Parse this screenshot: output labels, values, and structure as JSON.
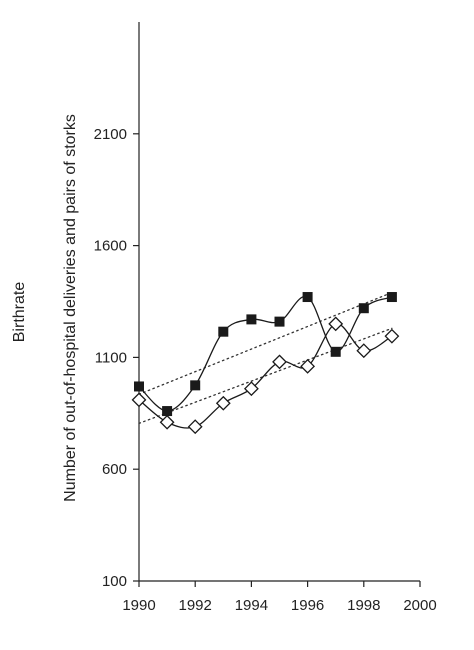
{
  "chart_data": {
    "type": "line",
    "title": "",
    "ylabel_outer": "Birthrate",
    "ylabel_inner": "Number of out-of-hospital deliveries and pairs of storks",
    "xlabel": "",
    "xlim": [
      1990,
      2000
    ],
    "ylim": [
      100,
      2600
    ],
    "x_ticks": [
      "1990",
      "1992",
      "1994",
      "1996",
      "1998",
      "2000"
    ],
    "y_ticks": [
      "100",
      "600",
      "1100",
      "1600",
      "2100"
    ],
    "x_tick_values": [
      1990,
      1992,
      1994,
      1996,
      1998,
      2000
    ],
    "y_tick_values": [
      100,
      600,
      1100,
      1600,
      2100
    ],
    "x": [
      1990,
      1991,
      1992,
      1993,
      1994,
      1995,
      1996,
      1997,
      1998,
      1999
    ],
    "grid": false,
    "series": [
      {
        "marker": "filled-square",
        "color": "#1a1a1a",
        "values": [
          970,
          860,
          975,
          1215,
          1270,
          1260,
          1370,
          1125,
          1320,
          1370
        ]
      },
      {
        "marker": "open-diamond",
        "color": "#1a1a1a",
        "values": [
          910,
          810,
          790,
          895,
          960,
          1080,
          1060,
          1250,
          1130,
          1195
        ]
      }
    ],
    "trendlines": [
      {
        "style": "dotted",
        "from": [
          1990,
          935
        ],
        "to": [
          1999,
          1390
        ]
      },
      {
        "style": "dotted",
        "from": [
          1990,
          805
        ],
        "to": [
          1999,
          1230
        ]
      }
    ]
  }
}
